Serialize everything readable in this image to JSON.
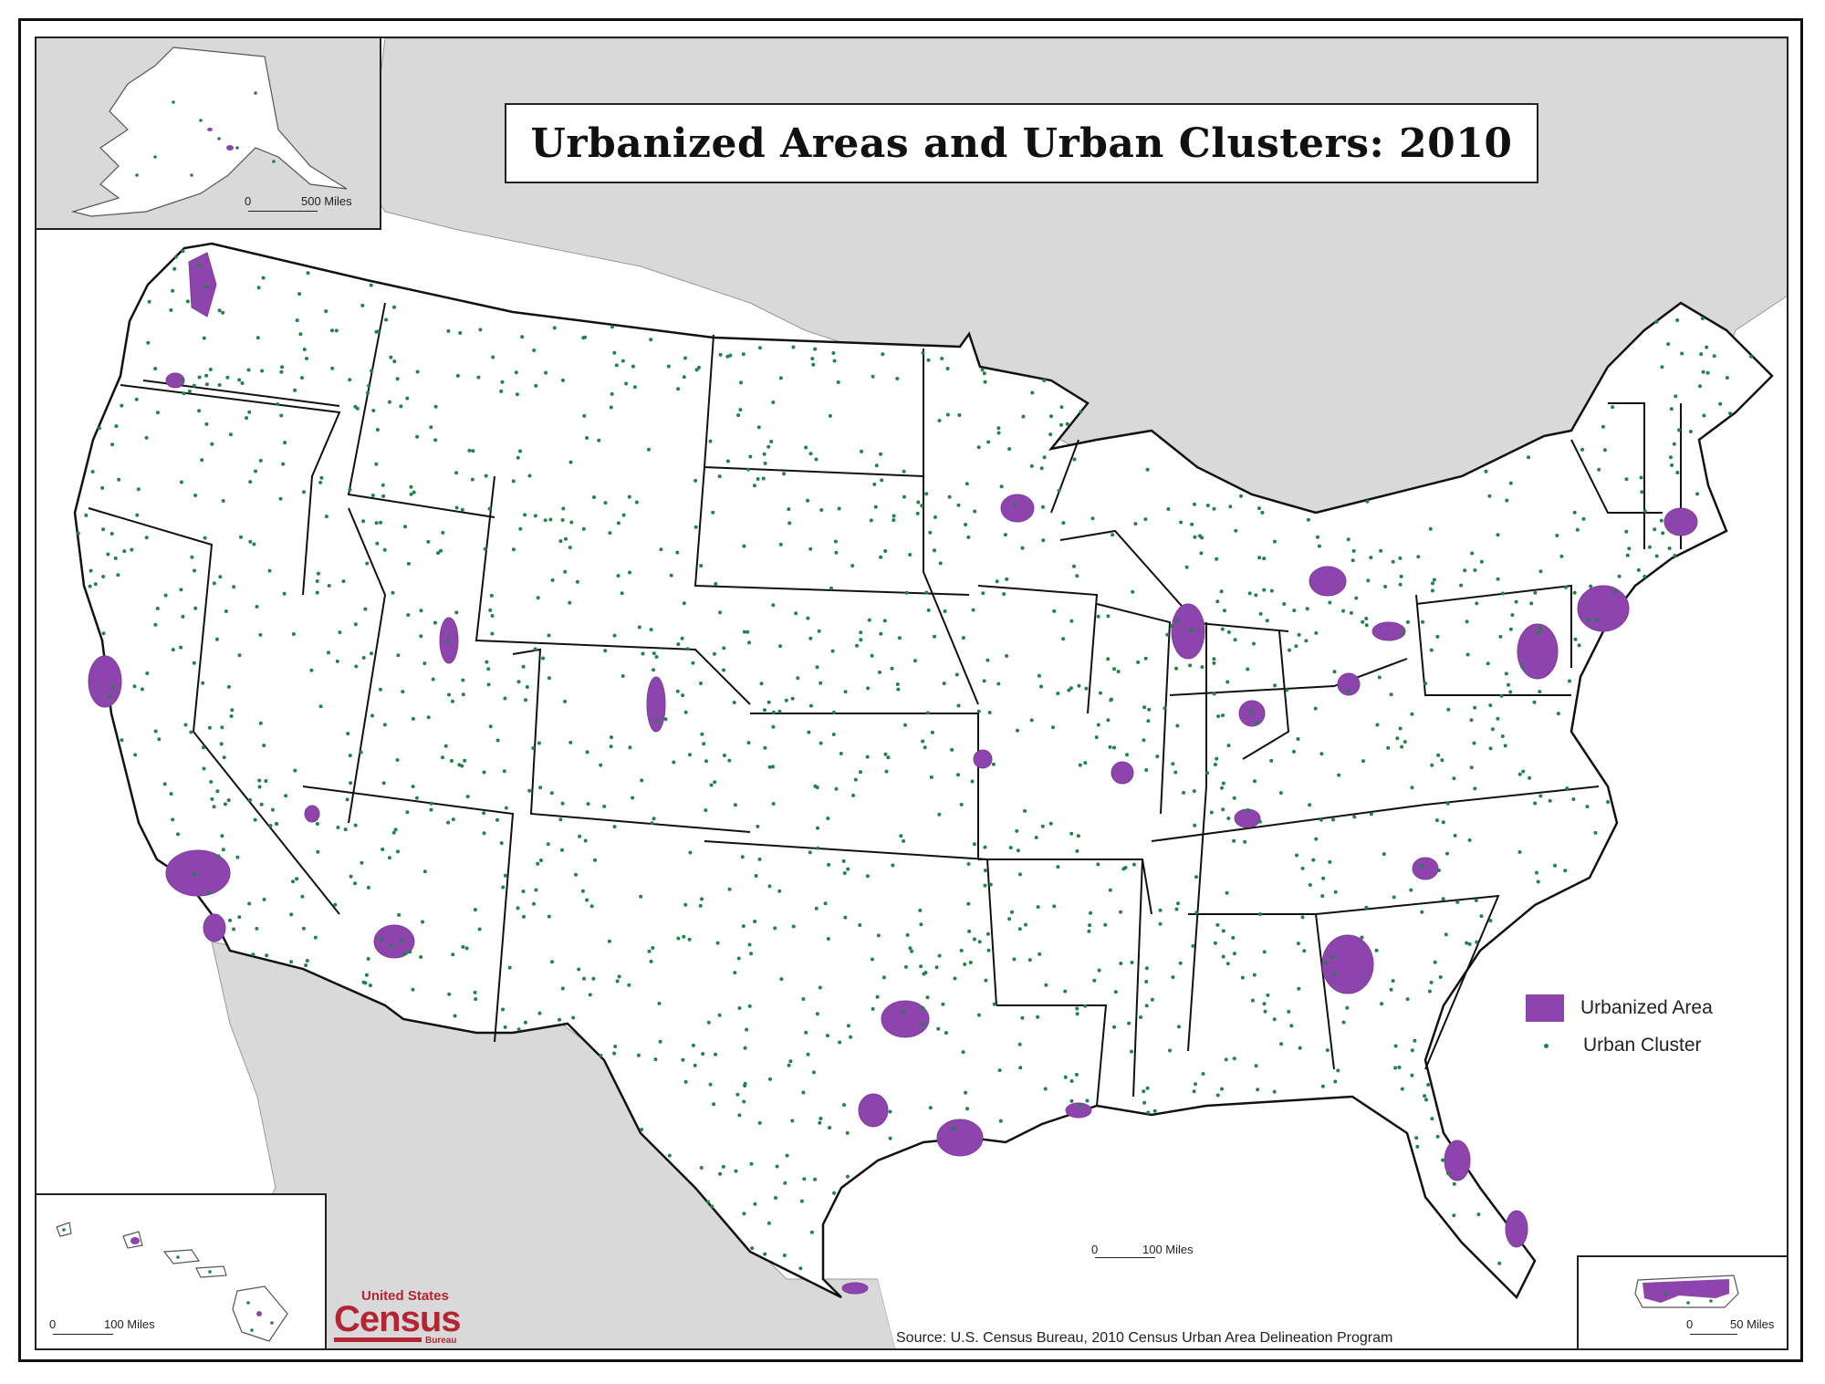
{
  "title": "Urbanized Areas and Urban Clusters: 2010",
  "legend": {
    "urbanized_area_label": "Urbanized Area",
    "urban_cluster_label": "Urban Cluster"
  },
  "colors": {
    "urbanized_area": "#8e44ad",
    "urban_cluster": "#1e8449",
    "water": "#d9d9d9",
    "land": "#ffffff",
    "boundary": "#111111"
  },
  "scales": {
    "main": {
      "zero": "0",
      "label": "100 Miles"
    },
    "alaska": {
      "zero": "0",
      "label": "500 Miles"
    },
    "hawaii": {
      "zero": "0",
      "label": "100 Miles"
    },
    "puerto_rico": {
      "zero": "0",
      "label": "50 Miles"
    }
  },
  "source": "Source:  U.S. Census Bureau, 2010 Census Urban Area Delineation Program",
  "logo": {
    "top": "United States",
    "word": "Census",
    "bureau": "Bureau"
  }
}
